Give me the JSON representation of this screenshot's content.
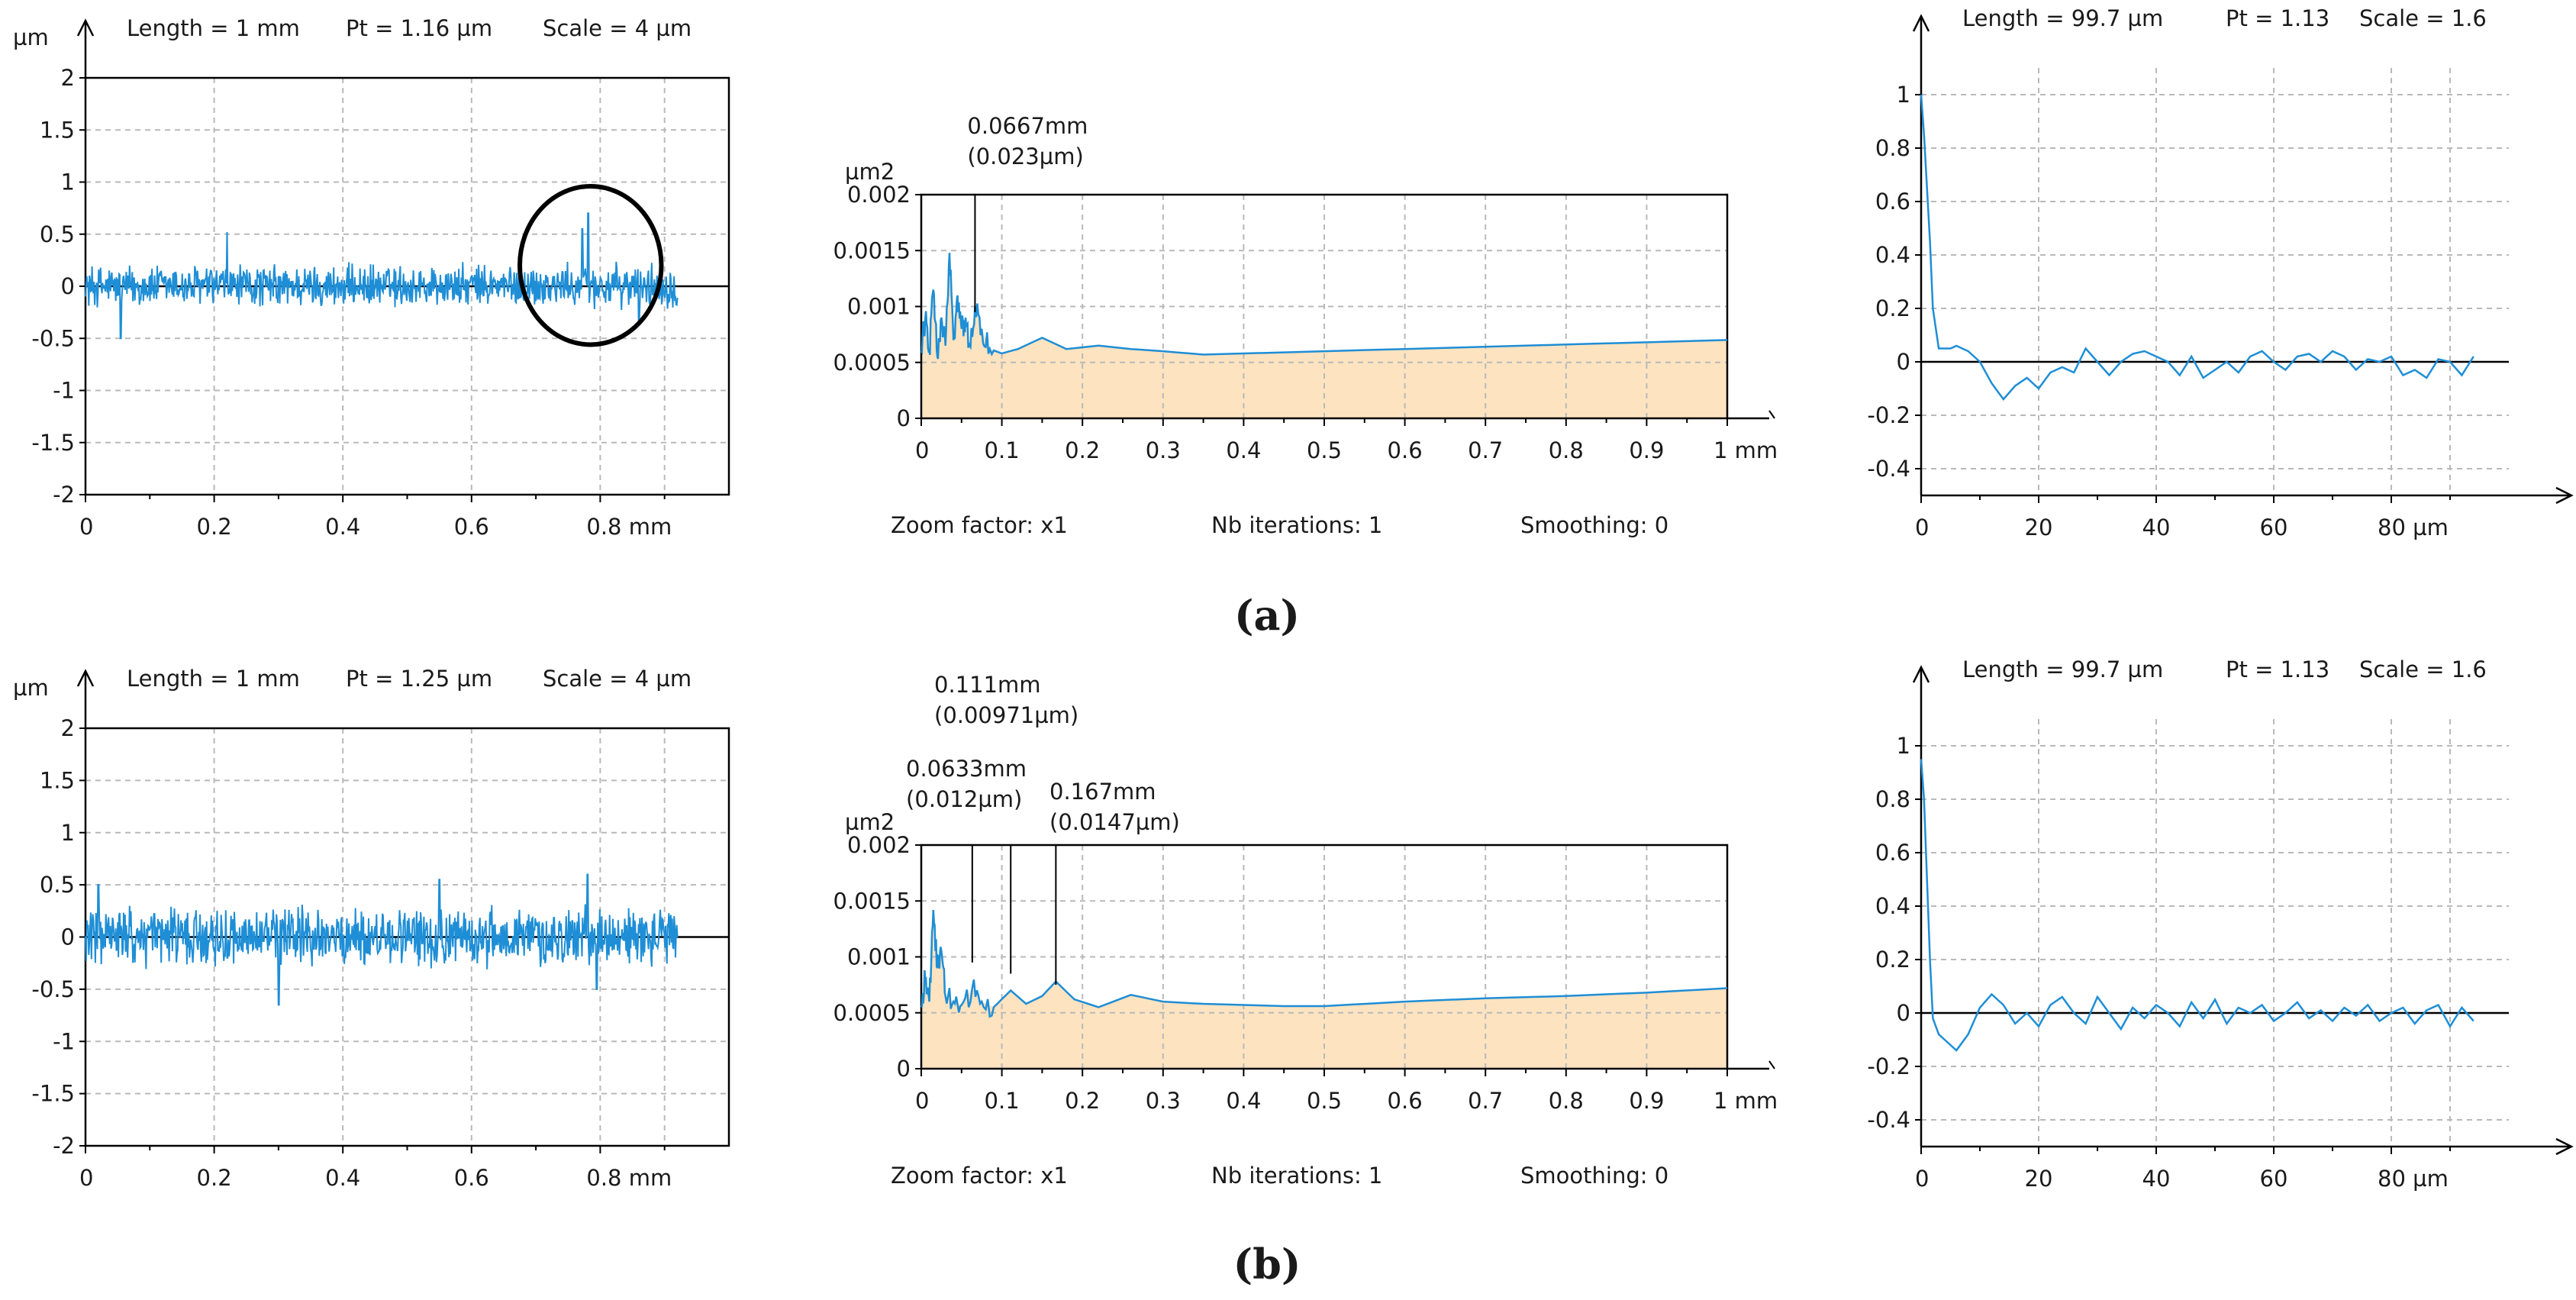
{
  "figure_captions": [
    "(a)",
    "(b)"
  ],
  "colors": {
    "trace": "#1e8ed6",
    "fill": "#fde3c0",
    "grid": "#b9b9b9",
    "axis": "#000000",
    "circle": "#000000"
  },
  "chart_data": [
    {
      "id": "a-profile",
      "type": "line",
      "header": {
        "unit": "µm",
        "length": "Length = 1 mm",
        "pt": "Pt = 1.16 µm",
        "scale": "Scale = 4 µm"
      },
      "xlim": [
        0,
        1
      ],
      "ylim": [
        -2,
        2
      ],
      "xticks": [
        0,
        0.2,
        0.4,
        0.6,
        0.8
      ],
      "xticklabels": [
        "0",
        "0.2",
        "0.4",
        "0.6",
        "0.8 mm"
      ],
      "yticks": [
        2,
        1.5,
        1,
        0.5,
        0,
        -0.5,
        -1,
        -1.5,
        -2
      ],
      "yticklabels": [
        "2",
        "1.5",
        "1",
        "0.5",
        "0",
        "-0.5",
        "-1",
        "-1.5",
        "-2"
      ],
      "series": [
        {
          "name": "profile",
          "noise": true,
          "x_range": [
            0,
            0.92
          ],
          "amplitude": 0.2,
          "spikes": [
            [
              0.22,
              0.52
            ],
            [
              0.055,
              -0.5
            ],
            [
              0.781,
              0.7
            ],
            [
              0.772,
              0.55
            ],
            [
              0.86,
              -0.35
            ]
          ]
        }
      ],
      "annotation": {
        "type": "circle",
        "center": [
          0.785,
          0.2
        ],
        "radius_x": 0.11,
        "radius_y": 0.76
      }
    },
    {
      "id": "a-psd",
      "type": "area",
      "ylabel": "µm2",
      "xlim": [
        0,
        1
      ],
      "ylim": [
        0,
        0.002
      ],
      "xticks": [
        0,
        0.1,
        0.2,
        0.3,
        0.4,
        0.5,
        0.6,
        0.7,
        0.8,
        0.9,
        1
      ],
      "xticklabels": [
        "0",
        "0.1",
        "0.2",
        "0.3",
        "0.4",
        "0.5",
        "0.6",
        "0.7",
        "0.8",
        "0.9",
        "1 mm"
      ],
      "yticks": [
        0,
        0.0005,
        0.001,
        0.0015,
        0.002
      ],
      "yticklabels": [
        "0",
        "0.0005",
        "0.001",
        "0.0015",
        "0.002"
      ],
      "series": [
        {
          "name": "psd",
          "x": [
            0,
            0.005,
            0.01,
            0.015,
            0.02,
            0.025,
            0.03,
            0.035,
            0.04,
            0.045,
            0.05,
            0.055,
            0.06,
            0.0667,
            0.075,
            0.085,
            0.1,
            0.12,
            0.15,
            0.18,
            0.22,
            0.26,
            0.3,
            0.35,
            0.4,
            0.5,
            0.6,
            0.7,
            0.8,
            0.9,
            1.0
          ],
          "y": [
            0.0006,
            0.0009,
            0.0006,
            0.00115,
            0.00055,
            0.0009,
            0.00065,
            0.00148,
            0.0007,
            0.0011,
            0.0008,
            0.0009,
            0.00065,
            0.001,
            0.0008,
            0.00062,
            0.00058,
            0.00062,
            0.00072,
            0.00062,
            0.00065,
            0.00062,
            0.0006,
            0.00057,
            0.00058,
            0.0006,
            0.00062,
            0.00064,
            0.00066,
            0.00068,
            0.0007
          ]
        }
      ],
      "markers": [
        {
          "x": 0.0667,
          "labels": [
            "0.0667mm",
            "(0.023µm)"
          ]
        }
      ],
      "footer": {
        "zoom": "Zoom factor: x1",
        "iterations": "Nb iterations: 1",
        "smoothing": "Smoothing: 0"
      }
    },
    {
      "id": "a-acf",
      "type": "line",
      "header": {
        "length": "Length = 99.7 µm",
        "pt": "Pt = 1.13",
        "scale": "Scale = 1.6"
      },
      "xlim": [
        0,
        100
      ],
      "ylim": [
        -0.5,
        1.1
      ],
      "xticks": [
        0,
        20,
        40,
        60,
        80
      ],
      "xticklabels": [
        "0",
        "20",
        "40",
        "60",
        "80 µm"
      ],
      "yticks": [
        1,
        0.8,
        0.6,
        0.4,
        0.2,
        0,
        -0.2,
        -0.4
      ],
      "yticklabels": [
        "1",
        "0.8",
        "0.6",
        "0.4",
        "0.2",
        "0",
        "-0.2",
        "-0.4"
      ],
      "series": [
        {
          "name": "acf",
          "x": [
            0,
            0.5,
            1,
            1.5,
            2,
            3,
            5,
            6,
            8,
            10,
            12,
            14,
            16,
            18,
            20,
            22,
            24,
            26,
            28,
            30,
            32,
            34,
            36,
            38,
            40,
            42,
            44,
            46,
            48,
            50,
            52,
            54,
            56,
            58,
            60,
            62,
            64,
            66,
            68,
            70,
            72,
            74,
            76,
            78,
            80,
            82,
            84,
            86,
            88,
            90,
            92,
            94
          ],
          "y": [
            1.0,
            0.85,
            0.65,
            0.45,
            0.2,
            0.05,
            0.05,
            0.06,
            0.04,
            0.0,
            -0.08,
            -0.14,
            -0.09,
            -0.06,
            -0.1,
            -0.04,
            -0.02,
            -0.04,
            0.05,
            0.0,
            -0.05,
            0.0,
            0.03,
            0.04,
            0.02,
            0.0,
            -0.05,
            0.02,
            -0.06,
            -0.03,
            0.0,
            -0.04,
            0.02,
            0.04,
            0.0,
            -0.03,
            0.02,
            0.03,
            0.0,
            0.04,
            0.02,
            -0.03,
            0.01,
            0.0,
            0.02,
            -0.05,
            -0.03,
            -0.06,
            0.01,
            0.0,
            -0.05,
            0.02
          ]
        }
      ]
    },
    {
      "id": "b-profile",
      "type": "line",
      "header": {
        "unit": "µm",
        "length": "Length = 1 mm",
        "pt": "Pt = 1.25 µm",
        "scale": "Scale = 4 µm"
      },
      "xlim": [
        0,
        1
      ],
      "ylim": [
        -2,
        2
      ],
      "xticks": [
        0,
        0.2,
        0.4,
        0.6,
        0.8
      ],
      "xticklabels": [
        "0",
        "0.2",
        "0.4",
        "0.6",
        "0.8 mm"
      ],
      "yticks": [
        2,
        1.5,
        1,
        0.5,
        0,
        -0.5,
        -1,
        -1.5,
        -2
      ],
      "yticklabels": [
        "2",
        "1.5",
        "1",
        "0.5",
        "0",
        "-0.5",
        "-1",
        "-1.5",
        "-2"
      ],
      "series": [
        {
          "name": "profile",
          "noise": true,
          "x_range": [
            0,
            0.92
          ],
          "amplitude": 0.27,
          "spikes": [
            [
              0.3,
              -0.65
            ],
            [
              0.78,
              0.6
            ],
            [
              0.795,
              -0.5
            ],
            [
              0.55,
              0.55
            ],
            [
              0.02,
              0.5
            ]
          ]
        }
      ]
    },
    {
      "id": "b-psd",
      "type": "area",
      "ylabel": "µm2",
      "xlim": [
        0,
        1
      ],
      "ylim": [
        0,
        0.002
      ],
      "xticks": [
        0,
        0.1,
        0.2,
        0.3,
        0.4,
        0.5,
        0.6,
        0.7,
        0.8,
        0.9,
        1
      ],
      "xticklabels": [
        "0",
        "0.1",
        "0.2",
        "0.3",
        "0.4",
        "0.5",
        "0.6",
        "0.7",
        "0.8",
        "0.9",
        "1 mm"
      ],
      "yticks": [
        0,
        0.0005,
        0.001,
        0.0015,
        0.002
      ],
      "yticklabels": [
        "0",
        "0.0005",
        "0.001",
        "0.0015",
        "0.002"
      ],
      "series": [
        {
          "name": "psd",
          "x": [
            0,
            0.005,
            0.01,
            0.015,
            0.02,
            0.025,
            0.03,
            0.04,
            0.05,
            0.0633,
            0.075,
            0.09,
            0.111,
            0.13,
            0.15,
            0.167,
            0.19,
            0.22,
            0.26,
            0.3,
            0.35,
            0.45,
            0.5,
            0.6,
            0.7,
            0.8,
            0.9,
            1.0
          ],
          "y": [
            0.00055,
            0.0008,
            0.0006,
            0.00142,
            0.0009,
            0.00105,
            0.00065,
            0.0006,
            0.00057,
            0.00072,
            0.0006,
            0.00055,
            0.0007,
            0.00058,
            0.00065,
            0.00078,
            0.00062,
            0.00055,
            0.00066,
            0.0006,
            0.00058,
            0.00056,
            0.00056,
            0.0006,
            0.00063,
            0.00065,
            0.00068,
            0.00072
          ]
        }
      ],
      "markers": [
        {
          "x": 0.0633,
          "labels": [
            "0.0633mm",
            "(0.012µm)"
          ]
        },
        {
          "x": 0.111,
          "labels": [
            "0.111mm",
            "(0.00971µm)"
          ]
        },
        {
          "x": 0.167,
          "labels": [
            "0.167mm",
            "(0.0147µm)"
          ]
        }
      ],
      "footer": {
        "zoom": "Zoom factor: x1",
        "iterations": "Nb iterations: 1",
        "smoothing": "Smoothing: 0"
      }
    },
    {
      "id": "b-acf",
      "type": "line",
      "header": {
        "length": "Length = 99.7 µm",
        "pt": "Pt = 1.13",
        "scale": "Scale = 1.6"
      },
      "xlim": [
        0,
        100
      ],
      "ylim": [
        -0.5,
        1.1
      ],
      "xticks": [
        0,
        20,
        40,
        60,
        80
      ],
      "xticklabels": [
        "0",
        "20",
        "40",
        "60",
        "80 µm"
      ],
      "yticks": [
        1,
        0.8,
        0.6,
        0.4,
        0.2,
        0,
        -0.2,
        -0.4
      ],
      "yticklabels": [
        "1",
        "0.8",
        "0.6",
        "0.4",
        "0.2",
        "0",
        "-0.2",
        "-0.4"
      ],
      "series": [
        {
          "name": "acf",
          "x": [
            0,
            0.5,
            1,
            1.5,
            2,
            3,
            4,
            6,
            8,
            10,
            12,
            14,
            16,
            18,
            20,
            22,
            24,
            26,
            28,
            30,
            32,
            34,
            36,
            38,
            40,
            42,
            44,
            46,
            48,
            50,
            52,
            54,
            56,
            58,
            60,
            62,
            64,
            66,
            68,
            70,
            72,
            74,
            76,
            78,
            80,
            82,
            84,
            86,
            88,
            90,
            92,
            94
          ],
          "y": [
            0.95,
            0.8,
            0.5,
            0.2,
            -0.02,
            -0.08,
            -0.1,
            -0.14,
            -0.08,
            0.02,
            0.07,
            0.03,
            -0.04,
            0.0,
            -0.05,
            0.03,
            0.06,
            0.0,
            -0.04,
            0.06,
            0.0,
            -0.06,
            0.02,
            -0.02,
            0.03,
            0.0,
            -0.05,
            0.04,
            -0.02,
            0.05,
            -0.04,
            0.02,
            0.0,
            0.03,
            -0.03,
            0.0,
            0.04,
            -0.02,
            0.01,
            -0.03,
            0.02,
            -0.01,
            0.03,
            -0.03,
            0.0,
            0.02,
            -0.04,
            0.01,
            0.03,
            -0.05,
            0.02,
            -0.03
          ]
        }
      ]
    }
  ]
}
